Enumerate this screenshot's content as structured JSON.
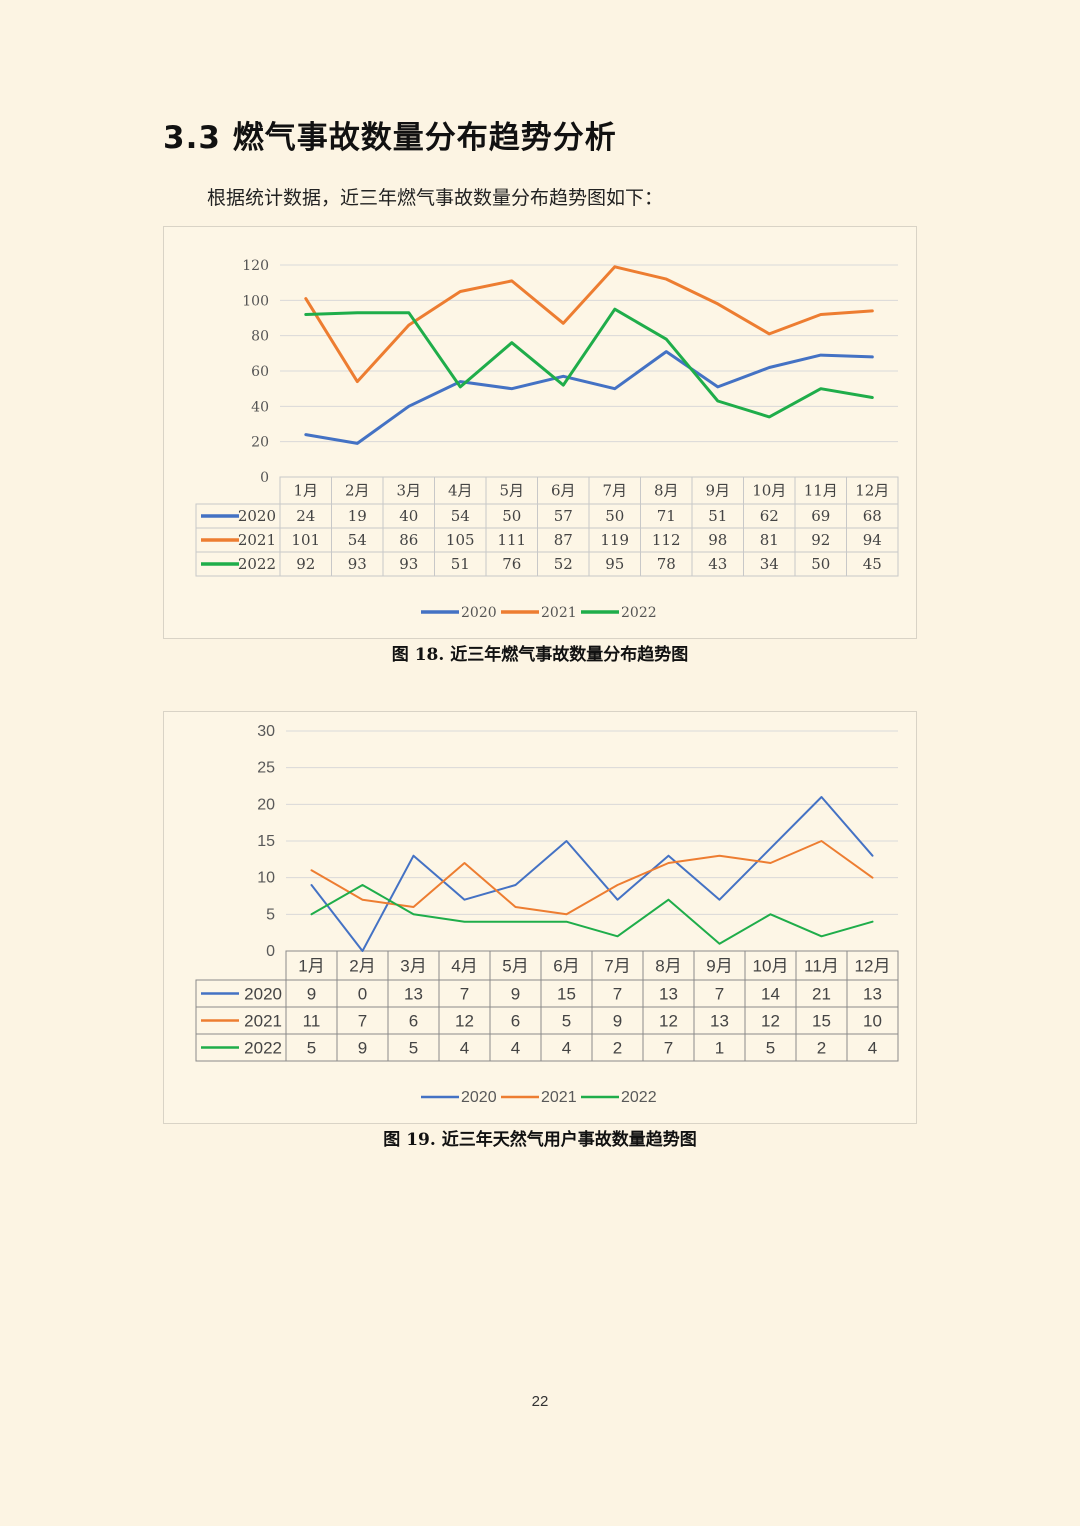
{
  "section": {
    "heading": "3.3 燃气事故数量分布趋势分析",
    "intro": "根据统计数据，近三年燃气事故数量分布趋势图如下："
  },
  "figures": [
    {
      "caption": "图 18. 近三年燃气事故数量分布趋势图",
      "font": "serif"
    },
    {
      "caption": "图 19. 近三年天然气用户事故数量趋势图",
      "font": "sans"
    }
  ],
  "page_number": "22",
  "chart_data": [
    {
      "type": "line",
      "categories": [
        "1月",
        "2月",
        "3月",
        "4月",
        "5月",
        "6月",
        "7月",
        "8月",
        "9月",
        "10月",
        "11月",
        "12月"
      ],
      "series": [
        {
          "name": "2020",
          "color": "#4472c4",
          "values": [
            24,
            19,
            40,
            54,
            50,
            57,
            50,
            71,
            51,
            62,
            69,
            68
          ]
        },
        {
          "name": "2021",
          "color": "#ed7d31",
          "values": [
            101,
            54,
            86,
            105,
            111,
            87,
            119,
            112,
            98,
            81,
            92,
            94
          ]
        },
        {
          "name": "2022",
          "color": "#1fad4a",
          "values": [
            92,
            93,
            93,
            51,
            76,
            52,
            95,
            78,
            43,
            34,
            50,
            45
          ]
        }
      ],
      "ylim": [
        0,
        120
      ],
      "yticks": [
        "0",
        "20",
        "40",
        "60",
        "80",
        "100",
        "120"
      ],
      "grid": true,
      "legend": "bottom",
      "data_table": true
    },
    {
      "type": "line",
      "categories": [
        "1月",
        "2月",
        "3月",
        "4月",
        "5月",
        "6月",
        "7月",
        "8月",
        "9月",
        "10月",
        "11月",
        "12月"
      ],
      "series": [
        {
          "name": "2020",
          "color": "#4472c4",
          "values": [
            9,
            0,
            13,
            7,
            9,
            15,
            7,
            13,
            7,
            14,
            21,
            13
          ]
        },
        {
          "name": "2021",
          "color": "#ed7d31",
          "values": [
            11,
            7,
            6,
            12,
            6,
            5,
            9,
            12,
            13,
            12,
            15,
            10
          ]
        },
        {
          "name": "2022",
          "color": "#1fad4a",
          "values": [
            5,
            9,
            5,
            4,
            4,
            4,
            2,
            7,
            1,
            5,
            2,
            4
          ]
        }
      ],
      "ylim": [
        0,
        30
      ],
      "yticks": [
        "0",
        "5",
        "10",
        "15",
        "20",
        "25",
        "30"
      ],
      "grid": true,
      "legend": "bottom",
      "data_table": true
    }
  ]
}
